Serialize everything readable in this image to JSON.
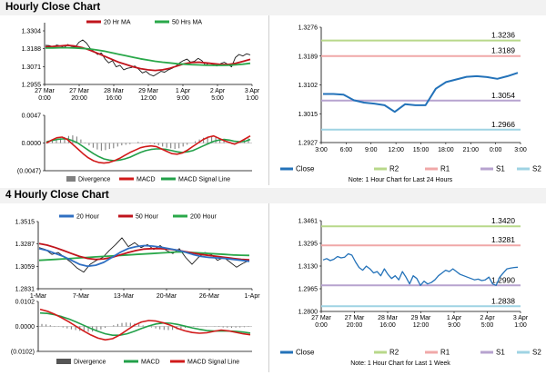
{
  "sections": [
    {
      "title": "Hourly Close Chart"
    },
    {
      "title": "4 Hourly Close Chart"
    }
  ],
  "colors": {
    "price": "#1a1a1a",
    "ma_a": "#c0141c",
    "ma_b": "#2aa84a",
    "ma_c": "#2f6fc2",
    "macd": "#d11a1a",
    "signal": "#22a049",
    "hist": "#808080",
    "close": "#2372b9",
    "r2": "#b8d88a",
    "r1": "#f0a8a8",
    "s1": "#b7a3cf",
    "s2": "#9fd3e3"
  },
  "chart_data": [
    {
      "id": "hourly-price",
      "type": "line",
      "legend": [
        "20 Hr MA",
        "50 Hrs MA"
      ],
      "y_ticks": [
        "1.3304",
        "1.3188",
        "1.3071",
        "1.2955"
      ],
      "ylim": [
        1.2955,
        1.3304
      ],
      "x_ticks": [
        [
          "27 Mar",
          "0:00"
        ],
        [
          "27 Mar",
          "20:00"
        ],
        [
          "28 Mar",
          "16:00"
        ],
        [
          "29 Mar",
          "12:00"
        ],
        [
          "1 Apr",
          "9:00"
        ],
        [
          "2 Apr",
          "5:00"
        ],
        [
          "3 Apr",
          "1:00"
        ]
      ],
      "series": [
        {
          "values": [
            1.321,
            1.3208,
            1.32,
            1.3212,
            1.3205,
            1.3195,
            1.3215,
            1.3202,
            1.3198,
            1.323,
            1.3245,
            1.3225,
            1.319,
            1.317,
            1.315,
            1.316,
            1.312,
            1.3095,
            1.311,
            1.307,
            1.308,
            1.305,
            1.306,
            1.3065,
            1.3075,
            1.3055,
            1.303,
            1.304,
            1.302,
            1.301,
            1.3025,
            1.304,
            1.3035,
            1.305,
            1.306,
            1.3075,
            1.3095,
            1.311,
            1.312,
            1.31,
            1.3105,
            1.3125,
            1.311,
            1.308,
            1.3095,
            1.3085,
            1.3075,
            1.309,
            1.31,
            1.3085,
            1.307,
            1.313,
            1.315,
            1.314,
            1.3155,
            1.3148
          ]
        },
        {
          "name": "20 Hr MA",
          "values": [
            1.32,
            1.3202,
            1.3206,
            1.321,
            1.3205,
            1.3195,
            1.318,
            1.316,
            1.314,
            1.312,
            1.31,
            1.3085,
            1.307,
            1.3058,
            1.305,
            1.3046,
            1.305,
            1.306,
            1.3075,
            1.309,
            1.3098,
            1.31,
            1.3095,
            1.309,
            1.3085,
            1.3085,
            1.3092,
            1.3105,
            1.3118
          ]
        },
        {
          "name": "50 Hrs MA",
          "values": [
            1.3192,
            1.3193,
            1.3194,
            1.3194,
            1.3193,
            1.319,
            1.3186,
            1.318,
            1.3172,
            1.3162,
            1.3152,
            1.3142,
            1.3132,
            1.3122,
            1.3114,
            1.3106,
            1.31,
            1.3095,
            1.309,
            1.3087,
            1.3084,
            1.3082,
            1.308,
            1.3079,
            1.3079,
            1.308,
            1.3083,
            1.3087,
            1.3093
          ]
        }
      ]
    },
    {
      "id": "hourly-macd",
      "type": "line",
      "legend": [
        "Divergence",
        "MACD",
        "MACD Signal Line"
      ],
      "y_ticks": [
        "0.0047",
        "0.0000",
        "(0.0047)"
      ],
      "ylim": [
        -0.0047,
        0.0047
      ],
      "series": [
        {
          "name": "Divergence",
          "values": [
            0.0002,
            0.0004,
            0.0006,
            0.0008,
            0.001,
            0.0012,
            0.0013,
            0.0011,
            0.0006,
            0.0001,
            -0.0004,
            -0.0008,
            -0.0011,
            -0.0013,
            -0.0012,
            -0.001,
            -0.0009,
            -0.0006,
            -0.0004,
            -0.0003,
            -0.0002,
            0.0,
            0.0002,
            0.0001,
            0.0,
            -0.0001,
            -0.0002,
            -0.0004,
            -0.0006,
            -0.0008,
            -0.0009,
            -0.001,
            -0.0009,
            -0.0006,
            -0.0003,
            0.0,
            0.0003,
            0.0006,
            0.0009,
            0.0011,
            0.0012,
            0.0011,
            0.0008,
            0.0004,
            0.0,
            -0.0002,
            -0.0001,
            0.0002,
            0.0005,
            0.0008
          ]
        },
        {
          "name": "MACD",
          "values": [
            0.0,
            0.0005,
            0.0009,
            0.001,
            0.0006,
            -0.0002,
            -0.001,
            -0.0018,
            -0.0025,
            -0.003,
            -0.0033,
            -0.0034,
            -0.0033,
            -0.003,
            -0.0026,
            -0.0021,
            -0.0016,
            -0.0012,
            -0.0008,
            -0.0006,
            -0.0005,
            -0.0006,
            -0.001,
            -0.0014,
            -0.0018,
            -0.0019,
            -0.0017,
            -0.0012,
            -0.0006,
            0.0,
            0.0006,
            0.001,
            0.0012,
            0.0008,
            0.0004,
            0.0001,
            -0.0002,
            0.0002,
            0.0007,
            0.0012
          ]
        },
        {
          "name": "MACD Signal Line",
          "values": [
            0.0002,
            0.0004,
            0.0006,
            0.0007,
            0.0007,
            0.0004,
            0.0,
            -0.0006,
            -0.0012,
            -0.0018,
            -0.0023,
            -0.0027,
            -0.0029,
            -0.003,
            -0.0029,
            -0.0027,
            -0.0024,
            -0.002,
            -0.0016,
            -0.0013,
            -0.0011,
            -0.001,
            -0.001,
            -0.0011,
            -0.0013,
            -0.0015,
            -0.0016,
            -0.0015,
            -0.0013,
            -0.0009,
            -0.0005,
            -0.0001,
            0.0003,
            0.0005,
            0.0006,
            0.0005,
            0.0003,
            0.0002,
            0.0003,
            0.0006
          ]
        }
      ]
    },
    {
      "id": "hourly-pivot",
      "type": "line",
      "y_ticks": [
        "1.3276",
        "1.3189",
        "1.3102",
        "1.3015",
        "1.2927"
      ],
      "ylim": [
        1.2927,
        1.3276
      ],
      "x_ticks": [
        "3:00",
        "6:00",
        "9:00",
        "12:00",
        "15:00",
        "18:00",
        "21:00",
        "0:00",
        "3:00"
      ],
      "legend": [
        "Close",
        "R2",
        "R1",
        "S1",
        "S2"
      ],
      "levels": {
        "R2": 1.3236,
        "R1": 1.3189,
        "S1": 1.3054,
        "S2": 1.2966
      },
      "level_labels": [
        "1.3236",
        "1.3189",
        "1.3054",
        "1.2966"
      ],
      "series": [
        {
          "name": "Close",
          "values": [
            1.3074,
            1.3074,
            1.3072,
            1.3055,
            1.3048,
            1.3045,
            1.304,
            1.302,
            1.3043,
            1.304,
            1.304,
            1.309,
            1.311,
            1.3118,
            1.3126,
            1.3128,
            1.3125,
            1.312,
            1.3128,
            1.3138
          ]
        }
      ],
      "note": "Note: 1 Hour Chart for Last 24 Hours"
    },
    {
      "id": "four-hourly-price",
      "type": "line",
      "legend": [
        "20 Hour",
        "50 Hour",
        "200 Hour"
      ],
      "y_ticks": [
        "1.3515",
        "1.3287",
        "1.3059",
        "1.2831"
      ],
      "ylim": [
        1.2831,
        1.3515
      ],
      "x_ticks": [
        "1-Mar",
        "7-Mar",
        "13-Mar",
        "20-Mar",
        "26-Mar",
        "1-Apr"
      ],
      "series": [
        {
          "values": [
            1.325,
            1.323,
            1.318,
            1.32,
            1.315,
            1.31,
            1.304,
            1.3,
            1.308,
            1.312,
            1.315,
            1.322,
            1.328,
            1.335,
            1.326,
            1.33,
            1.325,
            1.328,
            1.323,
            1.327,
            1.322,
            1.319,
            1.324,
            1.315,
            1.308,
            1.315,
            1.32,
            1.318,
            1.312,
            1.315,
            1.31,
            1.305,
            1.309,
            1.312
          ]
        },
        {
          "name": "20 Hour",
          "values": [
            1.324,
            1.322,
            1.319,
            1.316,
            1.312,
            1.308,
            1.306,
            1.307,
            1.31,
            1.315,
            1.32,
            1.324,
            1.326,
            1.327,
            1.3265,
            1.3255,
            1.324,
            1.3225,
            1.3205,
            1.318,
            1.316,
            1.315,
            1.3145,
            1.314,
            1.313,
            1.312,
            1.311
          ]
        },
        {
          "name": "50 Hour",
          "values": [
            1.329,
            1.3275,
            1.325,
            1.322,
            1.319,
            1.316,
            1.314,
            1.313,
            1.3135,
            1.315,
            1.3175,
            1.32,
            1.322,
            1.3235,
            1.324,
            1.324,
            1.3235,
            1.3225,
            1.321,
            1.3195,
            1.318,
            1.317,
            1.316,
            1.315,
            1.314,
            1.313,
            1.3125
          ]
        },
        {
          "name": "200 Hour",
          "values": [
            1.312,
            1.3125,
            1.313,
            1.3135,
            1.314,
            1.3145,
            1.315,
            1.3155,
            1.316,
            1.3165,
            1.317,
            1.3175,
            1.318,
            1.3185,
            1.319,
            1.3195,
            1.32,
            1.3205,
            1.3205,
            1.32,
            1.3195,
            1.319,
            1.3185,
            1.318,
            1.3175,
            1.3172,
            1.317
          ]
        }
      ]
    },
    {
      "id": "four-hourly-macd",
      "type": "line",
      "legend": [
        "Divergence",
        "MACD",
        "MACD Signal Line"
      ],
      "y_ticks": [
        "0.0102",
        "0.0000",
        "(0.0102)"
      ],
      "ylim": [
        -0.0102,
        0.0102
      ],
      "series": [
        {
          "name": "Divergence",
          "values": [
            0.001,
            0.0008,
            0.0005,
            0.0002,
            -0.0001,
            -0.0004,
            -0.0008,
            -0.0012,
            -0.0015,
            -0.0018,
            -0.002,
            -0.0022,
            -0.0021,
            -0.0018,
            -0.0012,
            -0.0006,
            0.0,
            0.0005,
            0.001,
            0.0014,
            0.0016,
            0.0015,
            0.0012,
            0.0008,
            0.0004,
            0.0,
            -0.0004,
            -0.0008,
            -0.0012,
            -0.0014,
            -0.0015,
            -0.0014,
            -0.0012,
            -0.0009,
            -0.0006,
            -0.0004,
            -0.0002,
            -0.0001,
            0.0,
            0.0001,
            0.0,
            -0.0001,
            -0.0002,
            -0.0004,
            -0.0005,
            -0.0006,
            -0.0005,
            -0.0004,
            -0.0003,
            -0.0002
          ]
        },
        {
          "name": "MACD",
          "values": [
            0.007,
            0.0062,
            0.005,
            0.0035,
            0.0018,
            0.0,
            -0.0018,
            -0.0035,
            -0.0048,
            -0.0055,
            -0.005,
            -0.0035,
            -0.0015,
            0.0005,
            0.0018,
            0.0024,
            0.0022,
            0.0015,
            0.0005,
            -0.0008,
            -0.0018,
            -0.0025,
            -0.0028,
            -0.0026,
            -0.002,
            -0.0015,
            -0.0018,
            -0.0024,
            -0.003,
            -0.0034
          ]
        },
        {
          "name": "MACD Signal Line",
          "values": [
            0.0055,
            0.0053,
            0.0048,
            0.004,
            0.003,
            0.0018,
            0.0005,
            -0.0008,
            -0.002,
            -0.003,
            -0.0036,
            -0.0036,
            -0.003,
            -0.002,
            -0.0008,
            0.0002,
            0.001,
            0.0014,
            0.0013,
            0.0008,
            0.0001,
            -0.0006,
            -0.0012,
            -0.0017,
            -0.0019,
            -0.0019,
            -0.0019,
            -0.002,
            -0.0023,
            -0.0027
          ]
        }
      ]
    },
    {
      "id": "four-hourly-pivot",
      "type": "line",
      "y_ticks": [
        "1.3461",
        "1.3295",
        "1.3130",
        "1.2965",
        "1.2800"
      ],
      "ylim": [
        1.28,
        1.3461
      ],
      "x_ticks": [
        [
          "27 Mar",
          "0:00"
        ],
        [
          "27 Mar",
          "20:00"
        ],
        [
          "28 Mar",
          "16:00"
        ],
        [
          "29 Mar",
          "12:00"
        ],
        [
          "1 Apr",
          "9:00"
        ],
        [
          "2 Apr",
          "5:00"
        ],
        [
          "3 Apr",
          "1:00"
        ]
      ],
      "legend": [
        "Close",
        "R2",
        "R1",
        "S1",
        "S2"
      ],
      "levels": {
        "R2": 1.342,
        "R1": 1.3281,
        "S1": 1.299,
        "S2": 1.2838
      },
      "level_labels": [
        "1.3420",
        "1.3281",
        "1.2990",
        "1.2838"
      ],
      "series": [
        {
          "name": "Close",
          "values": [
            1.3175,
            1.3185,
            1.317,
            1.318,
            1.32,
            1.319,
            1.3195,
            1.322,
            1.321,
            1.316,
            1.312,
            1.31,
            1.313,
            1.311,
            1.308,
            1.309,
            1.306,
            1.311,
            1.307,
            1.304,
            1.306,
            1.303,
            1.309,
            1.305,
            1.3,
            1.306,
            1.304,
            1.299,
            1.302,
            1.3,
            1.301,
            1.303,
            1.306,
            1.308,
            1.31,
            1.309,
            1.311,
            1.309,
            1.307,
            1.306,
            1.305,
            1.304,
            1.303,
            1.3035,
            1.3025,
            1.303,
            1.305,
            1.3,
            1.299,
            1.305,
            1.308,
            1.311,
            1.3115,
            1.312,
            1.3122
          ]
        }
      ],
      "note": "Note: 1 Hour Chart for Last 1 Week"
    }
  ]
}
